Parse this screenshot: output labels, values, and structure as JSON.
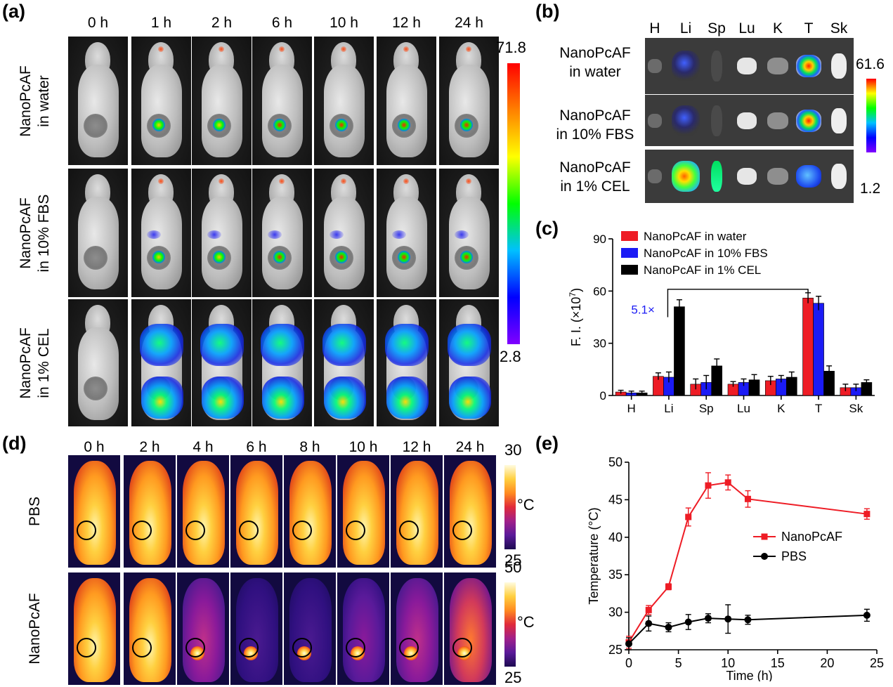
{
  "panel_a": {
    "letter": "(a)",
    "time_labels": [
      "0 h",
      "1 h",
      "2 h",
      "6 h",
      "10 h",
      "12 h",
      "24 h"
    ],
    "rows": [
      {
        "line1": "NanoPcAF",
        "line2": "in water",
        "intensity": 0.55,
        "spread": 0.0
      },
      {
        "line1": "NanoPcAF",
        "line2": "in 10% FBS",
        "intensity": 0.6,
        "spread": 0.05
      },
      {
        "line1": "NanoPcAF",
        "line2": "in 1% CEL",
        "intensity": 0.5,
        "spread": 1.0
      }
    ],
    "colorbar": {
      "max": "71.8",
      "min": "2.8"
    }
  },
  "panel_b": {
    "letter": "(b)",
    "organ_labels": [
      "H",
      "Li",
      "Sp",
      "Lu",
      "K",
      "T",
      "Sk"
    ],
    "rows": [
      {
        "line1": "NanoPcAF",
        "line2": "in water"
      },
      {
        "line1": "NanoPcAF",
        "line2": "in 10% FBS"
      },
      {
        "line1": "NanoPcAF",
        "line2": "in 1% CEL"
      }
    ],
    "colorbar": {
      "max": "61.6",
      "min": "1.2"
    }
  },
  "panel_d": {
    "letter": "(d)",
    "time_labels": [
      "0 h",
      "2 h",
      "4 h",
      "6 h",
      "8 h",
      "10 h",
      "12 h",
      "24 h"
    ],
    "rows": [
      {
        "label": "PBS",
        "bar_max": "30",
        "bar_unit": "°C",
        "bar_min": "25"
      },
      {
        "label": "NanoPcAF",
        "bar_max": "50",
        "bar_unit": "°C",
        "bar_min": "25"
      }
    ],
    "nanopcaf_body_warmth": [
      1.0,
      1.0,
      0.35,
      0.12,
      0.12,
      0.25,
      0.45,
      0.6
    ]
  },
  "chart_data": [
    {
      "panel": "(c)",
      "type": "bar",
      "categories": [
        "H",
        "Li",
        "Sp",
        "Lu",
        "K",
        "T",
        "Sk"
      ],
      "ylabel": "F. I. (×10",
      "ylabel_sup": "7",
      "ylabel_end": ")",
      "ylim": [
        0,
        90
      ],
      "yticks": [
        "0",
        "30",
        "60",
        "90"
      ],
      "legend_position": "top-left",
      "annotation": "5.1×",
      "series": [
        {
          "name": "NanoPcAF in water",
          "color": "#ee1c25",
          "values": [
            2,
            11,
            6.5,
            6.5,
            8.5,
            56,
            4.5
          ],
          "errors": [
            1,
            2,
            3,
            1.5,
            2.5,
            3,
            2
          ]
        },
        {
          "name": "NanoPcAF in 10% FBS",
          "color": "#1b1bf5",
          "values": [
            1.5,
            10.5,
            7.5,
            7.5,
            9.5,
            53,
            4.5
          ],
          "errors": [
            1,
            3,
            4,
            2,
            2,
            4,
            2
          ]
        },
        {
          "name": "NanoPcAF in 1% CEL",
          "color": "#000000",
          "values": [
            1.5,
            51,
            17,
            9,
            10.5,
            14,
            7.5
          ],
          "errors": [
            1,
            4,
            4,
            3,
            3,
            3,
            1.5
          ]
        }
      ]
    },
    {
      "panel": "(e)",
      "type": "line",
      "xlabel": "Time (h)",
      "ylabel": "Temperature (°C)",
      "xlim": [
        0,
        25
      ],
      "ylim": [
        25,
        50
      ],
      "xticks": [
        "0",
        "5",
        "10",
        "15",
        "20",
        "25"
      ],
      "yticks": [
        "25",
        "30",
        "35",
        "40",
        "45",
        "50"
      ],
      "legend_position": "center-right",
      "series": [
        {
          "name": "NanoPcAF",
          "color": "#ee1c25",
          "marker": "square",
          "x": [
            0,
            2,
            4,
            6,
            8,
            10,
            12,
            24
          ],
          "y": [
            26,
            30.3,
            33.4,
            42.7,
            46.9,
            47.3,
            45.1,
            43.1
          ],
          "errors": [
            0.8,
            0.6,
            0.4,
            1.2,
            1.7,
            1.0,
            1.1,
            0.7
          ]
        },
        {
          "name": "PBS",
          "color": "#000000",
          "marker": "circle",
          "x": [
            0,
            2,
            4,
            6,
            8,
            10,
            12,
            24
          ],
          "y": [
            25.8,
            28.5,
            28,
            28.7,
            29.2,
            29.1,
            29,
            29.6
          ],
          "errors": [
            0.8,
            1.0,
            0.6,
            1.0,
            0.6,
            1.9,
            0.6,
            0.8
          ]
        }
      ]
    }
  ]
}
